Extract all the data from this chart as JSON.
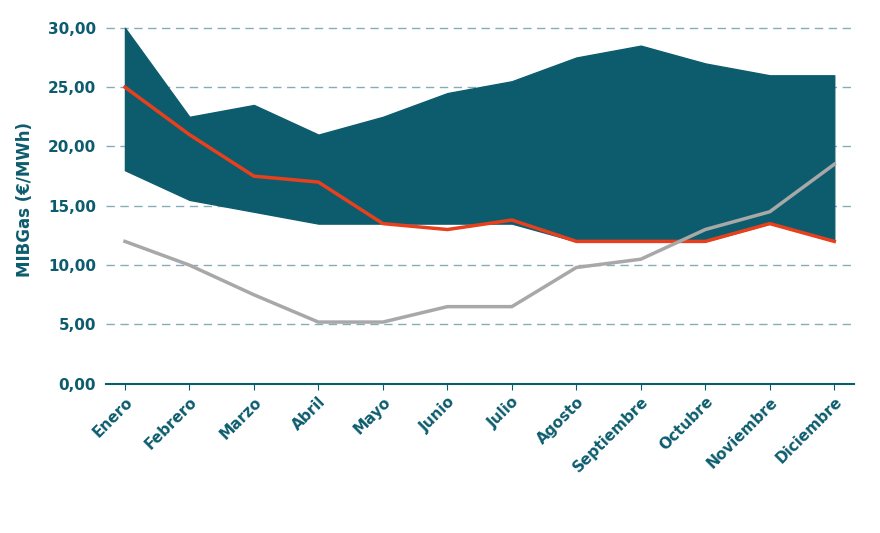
{
  "months": [
    "Enero",
    "Febrero",
    "Marzo",
    "Abril",
    "Mayo",
    "Junio",
    "Julio",
    "Agosto",
    "Septiembre",
    "Octubre",
    "Noviembre",
    "Diciembre"
  ],
  "range_upper": [
    30.0,
    22.5,
    23.5,
    21.0,
    22.5,
    24.5,
    25.5,
    27.5,
    28.5,
    27.0,
    26.0,
    26.0
  ],
  "range_lower": [
    18.0,
    15.5,
    14.5,
    13.5,
    13.5,
    13.5,
    13.5,
    12.0,
    12.0,
    12.0,
    13.5,
    12.0
  ],
  "precio_2019": [
    25.0,
    21.0,
    17.5,
    17.0,
    13.5,
    13.0,
    13.8,
    12.0,
    12.0,
    12.0,
    13.5,
    12.0
  ],
  "precio_2020": [
    12.0,
    10.0,
    7.5,
    5.2,
    5.2,
    6.5,
    6.5,
    9.8,
    10.5,
    13.0,
    14.5,
    18.5
  ],
  "range_color": "#0d5c6e",
  "precio_2019_color": "#e8401c",
  "precio_2020_color": "#a8a8a8",
  "text_color": "#0d5c6e",
  "ylabel": "MIBGas (€/MWh)",
  "ylim": [
    0,
    31
  ],
  "yticks": [
    0.0,
    5.0,
    10.0,
    15.0,
    20.0,
    25.0,
    30.0
  ],
  "ytick_labels": [
    "0,00",
    "5,00",
    "10,00",
    "15,00",
    "20,00",
    "25,00",
    "30,00"
  ],
  "bg_color": "#ffffff",
  "grid_color": "#0d5c6e",
  "axis_color": "#0d5c6e"
}
